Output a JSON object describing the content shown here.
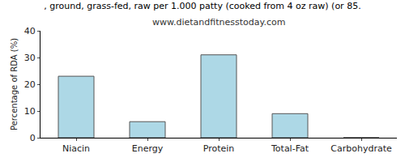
{
  "chart_data": {
    "type": "bar",
    "title": ", ground, grass-fed, raw per 1.000 patty (cooked from 4 oz raw) (or 85.",
    "subtitle": "www.dietandfitnesstoday.com",
    "y_label": "Percentage of RDA (%)",
    "categories": [
      "Niacin",
      "Energy",
      "Protein",
      "Total-Fat",
      "Carbohydrate"
    ],
    "values": [
      23,
      6,
      31,
      9,
      0
    ],
    "color": "#add8e6",
    "ylim": [
      0,
      40
    ],
    "yticks": [
      0,
      10,
      20,
      30,
      40
    ],
    "grid": false
  }
}
